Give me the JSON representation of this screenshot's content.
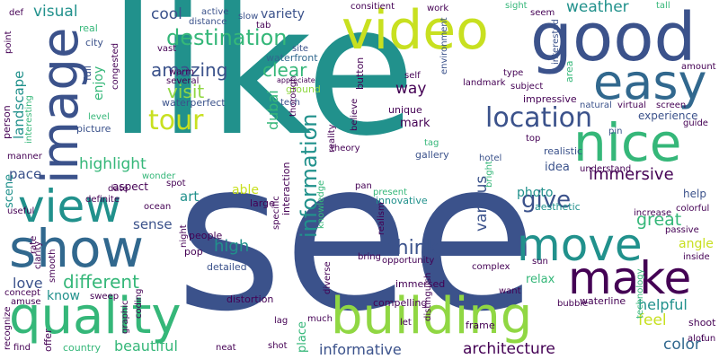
{
  "palette": {
    "purple": "#440154",
    "indigo": "#3b528b",
    "blue": "#31688e",
    "teal": "#21918c",
    "green": "#35b779",
    "lime": "#90d743",
    "yellow": "#c8e020"
  },
  "words": [
    "like",
    "see",
    "good",
    "video",
    "easy",
    "image",
    "nice",
    "view",
    "show",
    "quality",
    "building",
    "move",
    "make",
    "location",
    "tour",
    "destination",
    "amazing",
    "landscape",
    "visual",
    "cool",
    "variety",
    "weather",
    "clear",
    "way",
    "give",
    "immersive",
    "experience",
    "information",
    "dubai",
    "highlight",
    "pace",
    "different",
    "love",
    "various",
    "think",
    "great",
    "help",
    "angle",
    "helpful",
    "color",
    "feel",
    "architecture",
    "informative",
    "beautiful",
    "know",
    "art",
    "sense",
    "able",
    "high",
    "scene",
    "enjoy",
    "visit",
    "waterperfect",
    "waterfront",
    "mark",
    "unique",
    "photo",
    "idea",
    "relax",
    "immersed",
    "innovative",
    "aesthetic",
    "realistic",
    "gallery",
    "hotel",
    "picture",
    "aspect",
    "wonder",
    "date",
    "level",
    "person",
    "interesting",
    "full",
    "city",
    "real",
    "point",
    "def",
    "active",
    "distance",
    "slow",
    "tab",
    "site",
    "warm",
    "several",
    "vast",
    "congested",
    "ground",
    "tech",
    "thorough",
    "appreciate",
    "button",
    "consitient",
    "work",
    "sight",
    "seem",
    "tall",
    "interested",
    "amount",
    "type",
    "landmark",
    "self",
    "environment",
    "subject",
    "area",
    "natural",
    "virtual",
    "screen",
    "pin",
    "guide",
    "impressive",
    "believe",
    "reality",
    "theory",
    "top",
    "tag",
    "interaction",
    "knowledge",
    "pan",
    "present",
    "bright",
    "specific",
    "large",
    "understand",
    "increase",
    "colorful",
    "passive",
    "inside",
    "technology",
    "shoot",
    "fun",
    "alot",
    "sun",
    "offer",
    "complex",
    "opportunity",
    "bring",
    "realism",
    "diverse",
    "place",
    "detailed",
    "distortion",
    "compelling",
    "frame",
    "waterline",
    "bubble",
    "distinguish",
    "let",
    "much",
    "lag",
    "neat",
    "shot",
    "country",
    "beautiful",
    "find",
    "recognize",
    "amuse",
    "concept",
    "sweep",
    "coding",
    "graphic",
    "smooth",
    "rate",
    "useful",
    "manner",
    "definite",
    "spot",
    "ocean",
    "pop",
    "people",
    "night",
    "clarity",
    "want",
    "zoom"
  ]
}
